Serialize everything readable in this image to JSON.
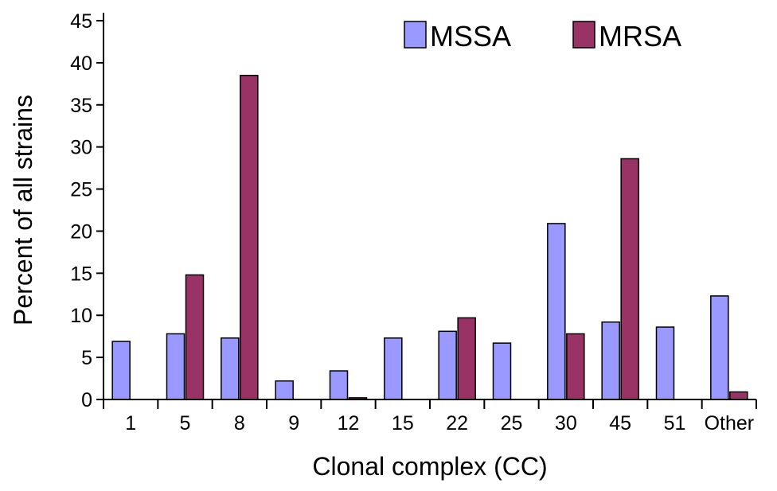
{
  "chart_data": {
    "type": "bar",
    "categories": [
      "1",
      "5",
      "8",
      "9",
      "12",
      "15",
      "22",
      "25",
      "30",
      "45",
      "51",
      "Other"
    ],
    "series": [
      {
        "name": "MSSA",
        "color": "#9999ff",
        "values": [
          6.9,
          7.8,
          7.3,
          2.2,
          3.4,
          7.3,
          8.1,
          6.7,
          20.9,
          9.2,
          8.6,
          12.3
        ]
      },
      {
        "name": "MRSA",
        "color": "#993366",
        "values": [
          0,
          14.8,
          38.5,
          0,
          0.2,
          0,
          9.7,
          0,
          7.8,
          28.6,
          0,
          0.9
        ]
      }
    ],
    "title": "",
    "xlabel": "Clonal complex (CC)",
    "ylabel": "Percent of all strains",
    "ylim": [
      0,
      45
    ],
    "yticks": [
      0,
      5,
      10,
      15,
      20,
      25,
      30,
      35,
      40,
      45
    ],
    "grid": false,
    "legend_position": "top-right"
  }
}
